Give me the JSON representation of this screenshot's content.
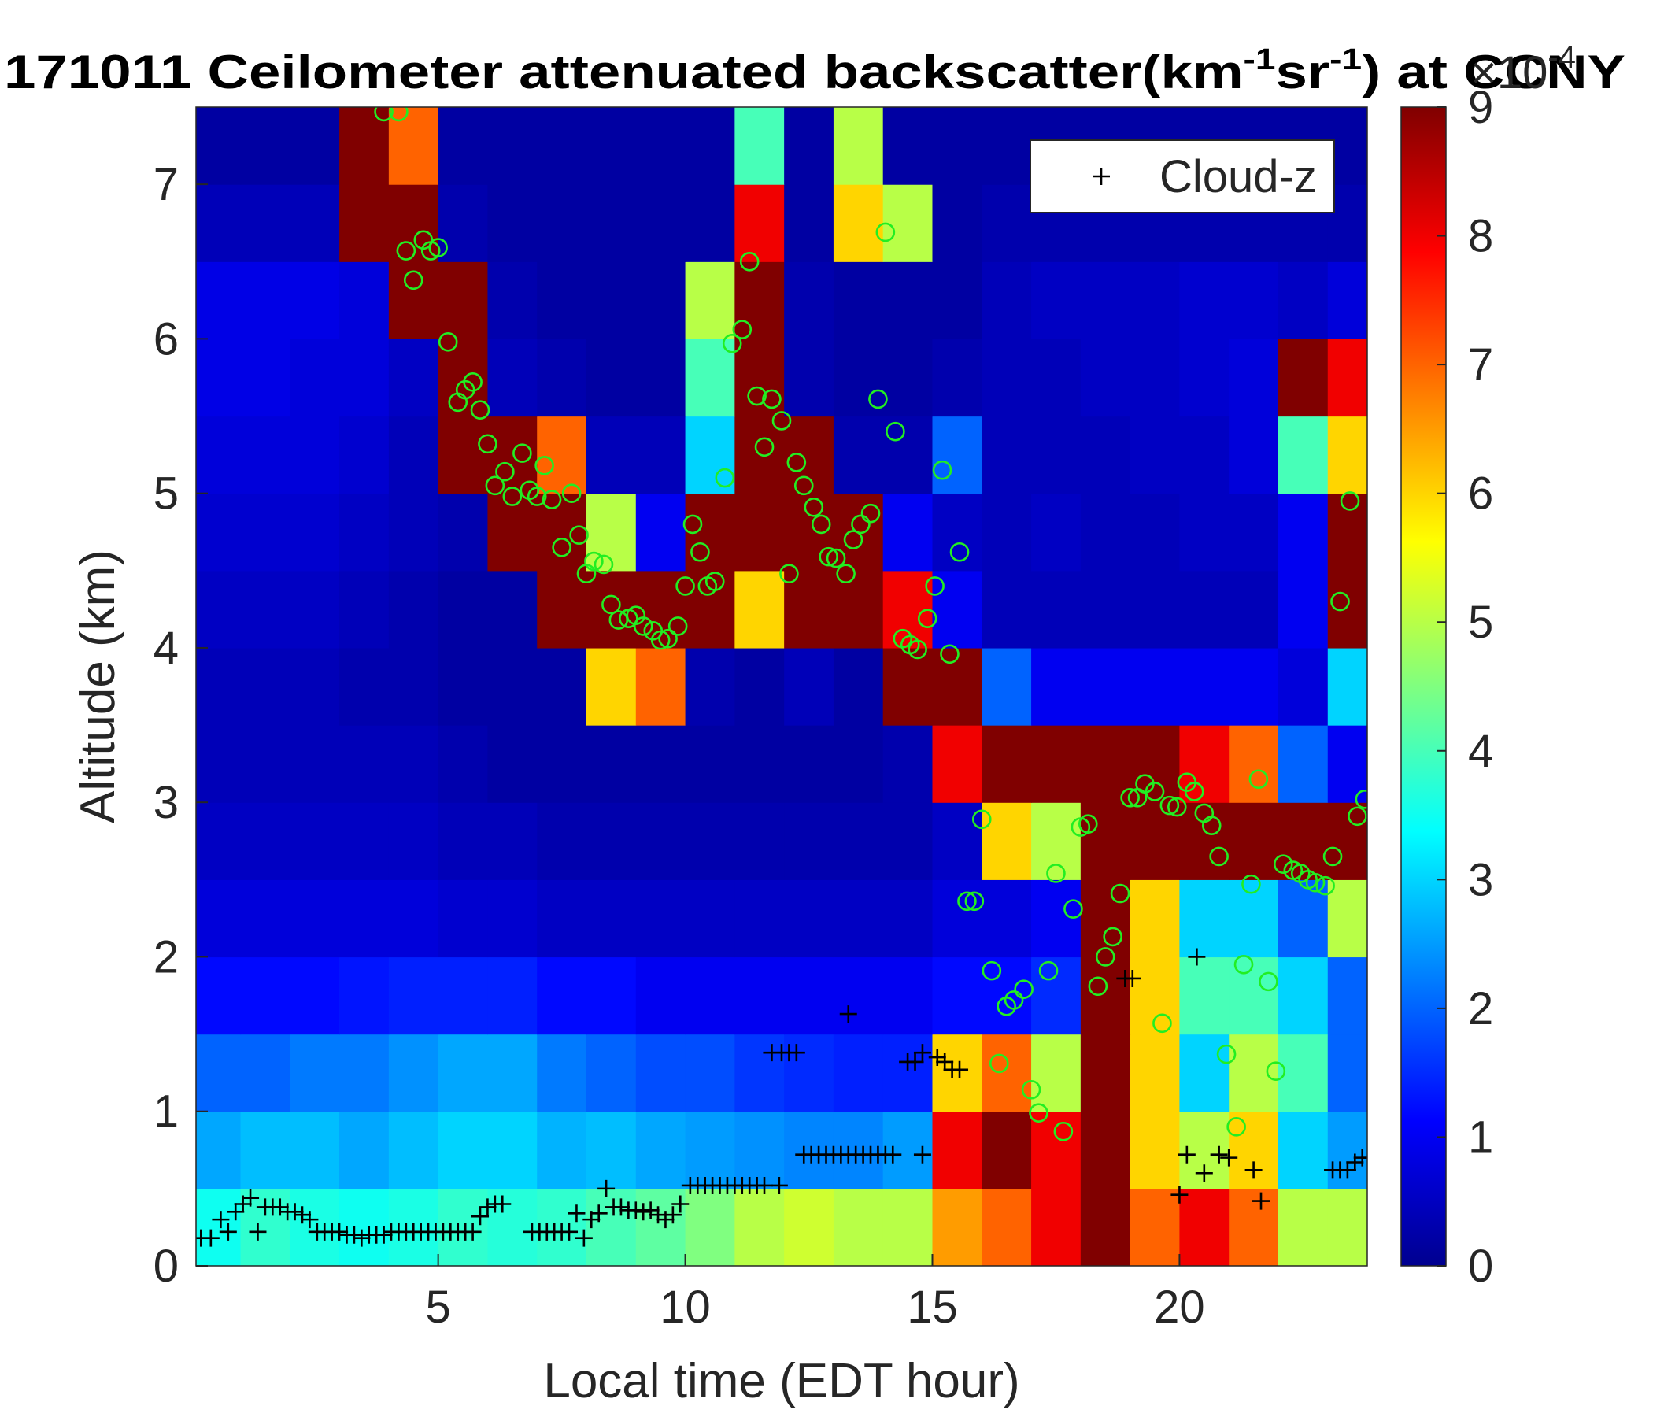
{
  "chart_data": {
    "type": "heatmap",
    "title": [
      "171011 Ceilometer attenuated backscatter(km",
      "-1",
      "sr",
      "-1",
      ") at CCNY"
    ],
    "x_label": "Local time (EDT hour)",
    "y_label": "Altitude (km)",
    "colorbar_label": [
      "×10",
      "-4"
    ],
    "xlim": [
      0.1,
      23.8
    ],
    "ylim": [
      0,
      7.5
    ],
    "xticks": [
      5,
      10,
      15,
      20
    ],
    "yticks": [
      0,
      1,
      2,
      3,
      4,
      5,
      6,
      7
    ],
    "clim": [
      0,
      9
    ],
    "cticks": [
      0,
      1,
      2,
      3,
      4,
      5,
      6,
      7,
      8,
      9
    ],
    "colormap": "jet",
    "x_edges": [
      0,
      1,
      2,
      3,
      4,
      5,
      6,
      7,
      8,
      9,
      10,
      11,
      12,
      13,
      14,
      15,
      16,
      17,
      18,
      19,
      20,
      21,
      22,
      23,
      24
    ],
    "y_edges": [
      0,
      0.5,
      1,
      1.5,
      2,
      2.5,
      3,
      3.5,
      4,
      4.5,
      5,
      5.5,
      6,
      6.5,
      7,
      7.5
    ],
    "z": [
      [
        3.5,
        3.8,
        3.6,
        3.5,
        3.6,
        3.8,
        3.7,
        3.8,
        4.0,
        4.2,
        4.5,
        5.0,
        5.2,
        5.0,
        5.0,
        6.5,
        7.0,
        8,
        9,
        7,
        8,
        7,
        5,
        5
      ],
      [
        2.6,
        2.8,
        2.8,
        2.6,
        2.8,
        3.0,
        3.0,
        2.7,
        2.8,
        2.6,
        2.5,
        2.4,
        2.3,
        2.3,
        2.5,
        8,
        9,
        8,
        9,
        6,
        5,
        6,
        3,
        2.5
      ],
      [
        2.0,
        2.0,
        2.2,
        2.2,
        2.4,
        2.6,
        2.6,
        2.2,
        2.0,
        1.8,
        1.8,
        1.6,
        1.5,
        1.4,
        1.4,
        6,
        7,
        5,
        9,
        6,
        3,
        5,
        4,
        2.0
      ],
      [
        1.2,
        1.2,
        1.2,
        1.3,
        1.4,
        1.4,
        1.4,
        1.2,
        1.2,
        1.0,
        1.0,
        1.0,
        1.0,
        1.0,
        1.0,
        1.2,
        1.2,
        1.5,
        9,
        6,
        4,
        4,
        3,
        2.0
      ],
      [
        0.8,
        0.8,
        0.8,
        0.8,
        0.8,
        0.7,
        0.7,
        0.6,
        0.6,
        0.6,
        0.6,
        0.6,
        0.6,
        0.6,
        0.6,
        0.8,
        0.8,
        1.0,
        9,
        6,
        3,
        3,
        2,
        5
      ],
      [
        0.6,
        0.6,
        0.6,
        0.6,
        0.6,
        0.5,
        0.5,
        0.4,
        0.4,
        0.4,
        0.4,
        0.4,
        0.4,
        0.4,
        0.4,
        0.6,
        6,
        5,
        9,
        9,
        9,
        9,
        9,
        9
      ],
      [
        0.5,
        0.5,
        0.5,
        0.5,
        0.5,
        0.4,
        0.3,
        0.3,
        0.3,
        0.3,
        0.3,
        0.3,
        0.3,
        0.3,
        0.4,
        8,
        9,
        9,
        9,
        9,
        8,
        7,
        2,
        1
      ],
      [
        0.5,
        0.5,
        0.5,
        0.4,
        0.4,
        0.3,
        0.3,
        0.3,
        6,
        7,
        0.4,
        0.3,
        0.5,
        0.3,
        9,
        9,
        2,
        1,
        1,
        1,
        1,
        1,
        0.8,
        3
      ],
      [
        0.6,
        0.6,
        0.6,
        0.5,
        0.4,
        0.3,
        0.3,
        9,
        9,
        9,
        9,
        6,
        9,
        9,
        8,
        1,
        0.5,
        0.5,
        0.5,
        0.5,
        0.5,
        0.5,
        1,
        9
      ],
      [
        0.7,
        0.7,
        0.7,
        0.6,
        0.5,
        0.4,
        9,
        9,
        5,
        1,
        9,
        9,
        9,
        9,
        1,
        0.6,
        0.5,
        0.6,
        0.5,
        0.5,
        0.6,
        0.6,
        1,
        9
      ],
      [
        0.8,
        0.8,
        0.8,
        0.7,
        0.5,
        9,
        9,
        7,
        0.5,
        0.5,
        3,
        9,
        9,
        0.4,
        0.4,
        2,
        0.5,
        0.5,
        0.5,
        0.6,
        0.6,
        0.8,
        4,
        6
      ],
      [
        0.9,
        0.9,
        0.8,
        0.8,
        0.6,
        9,
        0.5,
        0.4,
        0.3,
        0.3,
        4,
        9,
        0.4,
        0.3,
        0.3,
        0.4,
        0.5,
        0.5,
        0.6,
        0.6,
        0.7,
        0.8,
        9,
        8
      ],
      [
        0.9,
        0.9,
        0.9,
        0.8,
        9,
        9,
        0.4,
        0.3,
        0.3,
        0.3,
        5,
        9,
        0.4,
        0.3,
        0.3,
        0.3,
        0.5,
        0.6,
        0.6,
        0.6,
        0.7,
        0.7,
        0.6,
        0.8
      ],
      [
        0.5,
        0.5,
        0.5,
        9,
        9,
        0.4,
        0.3,
        0.3,
        0.3,
        0.3,
        0.3,
        8,
        0.3,
        6,
        5,
        0.3,
        0.4,
        0.4,
        0.4,
        0.4,
        0.4,
        0.4,
        0.4,
        0.4
      ],
      [
        0.3,
        0.3,
        0.3,
        9,
        7,
        0.3,
        0.3,
        0.3,
        0.3,
        0.3,
        0.3,
        4,
        0.3,
        5,
        0.3,
        0.3,
        0.3,
        0.3,
        0.3,
        0.3,
        0.3,
        0.3,
        0.3,
        0.3
      ]
    ],
    "legend": "upper right",
    "series": [
      {
        "marker": "o",
        "color": "#22ee22",
        "x": [
          3.9,
          4.2,
          4.35,
          4.5,
          4.7,
          4.85,
          5.0,
          5.2,
          5.4,
          5.55,
          5.7,
          5.85,
          6.0,
          6.15,
          6.35,
          6.5,
          6.7,
          6.85,
          7.0,
          7.15,
          7.3,
          7.7,
          7.5,
          7.85,
          8.0,
          8.15,
          8.35,
          8.5,
          8.65,
          8.85,
          9.0,
          9.15,
          9.35,
          9.5,
          9.65,
          9.85,
          10.0,
          10.15,
          10.3,
          10.45,
          10.6,
          10.8,
          10.95,
          11.15,
          11.3,
          11.45,
          11.6,
          11.75,
          11.95,
          12.1,
          12.25,
          12.4,
          12.6,
          12.75,
          12.9,
          13.05,
          13.25,
          13.4,
          13.55,
          13.75,
          13.9,
          14.05,
          14.25,
          14.4,
          14.55,
          14.7,
          14.9,
          15.05,
          15.2,
          15.35,
          15.55,
          16.0,
          15.7,
          15.85,
          16.2,
          16.35,
          16.5,
          16.65,
          16.85,
          17.0,
          17.15,
          17.35,
          17.5,
          17.65,
          17.85,
          18.0,
          18.15,
          18.35,
          18.5,
          18.65,
          18.8,
          19.0,
          19.15,
          19.3,
          19.5,
          19.65,
          19.8,
          19.95,
          20.15,
          20.3,
          20.5,
          20.65,
          20.8,
          20.95,
          21.15,
          21.3,
          21.45,
          21.6,
          21.8,
          21.95,
          22.1,
          22.3,
          22.45,
          22.6,
          22.75,
          22.95,
          23.1,
          23.25,
          23.45,
          23.6,
          23.75
        ],
        "values": [
          7.47,
          7.47,
          6.57,
          6.38,
          6.64,
          6.57,
          6.59,
          5.98,
          5.59,
          5.67,
          5.72,
          5.54,
          5.32,
          5.05,
          5.14,
          4.98,
          5.26,
          5.02,
          4.98,
          5.18,
          4.96,
          5.0,
          4.65,
          4.73,
          4.48,
          4.56,
          4.54,
          4.28,
          4.18,
          4.19,
          4.21,
          4.14,
          4.11,
          4.05,
          4.06,
          4.14,
          4.4,
          4.8,
          4.62,
          4.4,
          4.43,
          5.1,
          5.97,
          6.06,
          6.5,
          5.63,
          5.3,
          5.61,
          5.47,
          4.48,
          5.2,
          5.05,
          4.91,
          4.8,
          4.59,
          4.58,
          4.48,
          4.7,
          4.8,
          4.87,
          5.61,
          6.69,
          5.4,
          4.06,
          4.02,
          3.99,
          4.19,
          4.4,
          5.15,
          3.96,
          4.62,
          2.89,
          2.36,
          2.36,
          1.91,
          1.31,
          1.68,
          1.72,
          1.79,
          1.14,
          0.99,
          1.91,
          2.54,
          0.87,
          2.31,
          2.84,
          2.86,
          1.81,
          2.0,
          2.13,
          2.41,
          3.03,
          3.03,
          3.12,
          3.07,
          1.57,
          2.98,
          2.97,
          3.13,
          3.07,
          2.93,
          2.85,
          2.65,
          1.37,
          0.9,
          1.95,
          2.47,
          3.15,
          1.84,
          1.26,
          2.6,
          2.56,
          2.54,
          2.5,
          2.48,
          2.46,
          2.65,
          4.3,
          4.95,
          2.91,
          3.02
        ]
      },
      {
        "name": "Cloud-z",
        "marker": "+",
        "color": "#000000",
        "x": [
          0.2,
          0.4,
          0.6,
          0.75,
          0.9,
          1.05,
          1.2,
          1.35,
          1.5,
          1.65,
          1.8,
          1.95,
          2.1,
          2.25,
          2.4,
          2.55,
          2.7,
          2.85,
          3.0,
          3.15,
          3.3,
          3.45,
          3.6,
          3.75,
          3.9,
          4.05,
          4.2,
          4.35,
          4.5,
          4.65,
          4.8,
          4.95,
          5.1,
          5.25,
          5.4,
          5.55,
          5.7,
          5.85,
          6.0,
          6.15,
          6.3,
          6.9,
          7.05,
          7.2,
          7.35,
          7.5,
          7.65,
          7.8,
          7.95,
          8.1,
          8.25,
          8.4,
          8.55,
          8.7,
          8.85,
          9.0,
          9.15,
          9.3,
          9.45,
          9.6,
          9.75,
          9.9,
          10.1,
          10.25,
          10.4,
          10.55,
          10.7,
          10.85,
          11.0,
          11.15,
          11.3,
          11.45,
          11.6,
          11.9,
          11.75,
          11.95,
          12.1,
          12.25,
          12.4,
          12.55,
          12.7,
          12.85,
          13.0,
          13.15,
          13.3,
          13.45,
          13.6,
          13.75,
          13.9,
          14.05,
          14.2,
          14.8,
          13.3,
          14.5,
          14.65,
          14.8,
          15.1,
          15.25,
          15.4,
          15.55,
          18.9,
          19.05,
          20.0,
          20.15,
          20.35,
          20.5,
          20.8,
          21.0,
          21.5,
          21.65,
          23.1,
          23.25,
          23.4,
          23.55,
          23.7,
          23.85
        ],
        "values": [
          0.18,
          0.18,
          0.3,
          0.22,
          0.35,
          0.4,
          0.44,
          0.22,
          0.38,
          0.38,
          0.38,
          0.35,
          0.35,
          0.33,
          0.3,
          0.22,
          0.22,
          0.22,
          0.22,
          0.2,
          0.2,
          0.18,
          0.2,
          0.2,
          0.2,
          0.22,
          0.22,
          0.22,
          0.22,
          0.22,
          0.22,
          0.22,
          0.22,
          0.22,
          0.22,
          0.22,
          0.22,
          0.32,
          0.38,
          0.4,
          0.4,
          0.22,
          0.22,
          0.22,
          0.22,
          0.22,
          0.22,
          0.34,
          0.18,
          0.3,
          0.34,
          0.5,
          0.38,
          0.38,
          0.36,
          0.36,
          0.35,
          0.36,
          0.33,
          0.3,
          0.33,
          0.4,
          0.52,
          0.52,
          0.52,
          0.52,
          0.52,
          0.52,
          0.52,
          0.52,
          0.52,
          0.52,
          0.52,
          0.52,
          1.38,
          1.38,
          1.38,
          1.38,
          0.72,
          0.72,
          0.72,
          0.72,
          0.72,
          0.72,
          0.72,
          0.72,
          0.72,
          0.72,
          0.72,
          0.72,
          0.72,
          0.72,
          1.63,
          1.32,
          1.32,
          1.38,
          1.35,
          1.32,
          1.27,
          1.27,
          1.86,
          1.86,
          0.46,
          0.72,
          2.0,
          0.6,
          0.72,
          0.7,
          0.62,
          0.42,
          0.62,
          0.62,
          0.62,
          0.67,
          0.7,
          0.7
        ]
      }
    ]
  }
}
